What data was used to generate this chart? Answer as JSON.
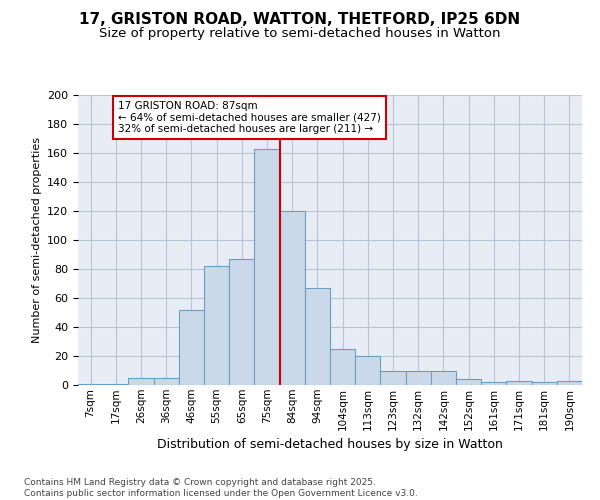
{
  "title": "17, GRISTON ROAD, WATTON, THETFORD, IP25 6DN",
  "subtitle": "Size of property relative to semi-detached houses in Watton",
  "xlabel": "Distribution of semi-detached houses by size in Watton",
  "ylabel": "Number of semi-detached properties",
  "bin_labels": [
    "7sqm",
    "17sqm",
    "26sqm",
    "36sqm",
    "46sqm",
    "55sqm",
    "65sqm",
    "75sqm",
    "84sqm",
    "94sqm",
    "104sqm",
    "113sqm",
    "123sqm",
    "132sqm",
    "142sqm",
    "152sqm",
    "161sqm",
    "171sqm",
    "181sqm",
    "190sqm"
  ],
  "values": [
    1,
    1,
    5,
    5,
    52,
    82,
    87,
    163,
    120,
    67,
    25,
    20,
    10,
    10,
    10,
    4,
    2,
    3,
    2,
    3
  ],
  "bar_color": "#c9d9ea",
  "bar_edge_color": "#6a9ec5",
  "vline_color": "#cc0000",
  "vline_position": 7.5,
  "annotation_text": "17 GRISTON ROAD: 87sqm\n← 64% of semi-detached houses are smaller (427)\n32% of semi-detached houses are larger (211) →",
  "annotation_box_edgecolor": "#cc0000",
  "ylim": [
    0,
    200
  ],
  "yticks": [
    0,
    20,
    40,
    60,
    80,
    100,
    120,
    140,
    160,
    180,
    200
  ],
  "grid_color": "#b8c4d8",
  "background_color": "#e8ecf4",
  "footer": "Contains HM Land Registry data © Crown copyright and database right 2025.\nContains public sector information licensed under the Open Government Licence v3.0.",
  "title_fontsize": 11,
  "subtitle_fontsize": 9.5,
  "xlabel_fontsize": 9,
  "ylabel_fontsize": 8,
  "tick_fontsize": 8,
  "xtick_fontsize": 7.5,
  "footer_fontsize": 6.5
}
